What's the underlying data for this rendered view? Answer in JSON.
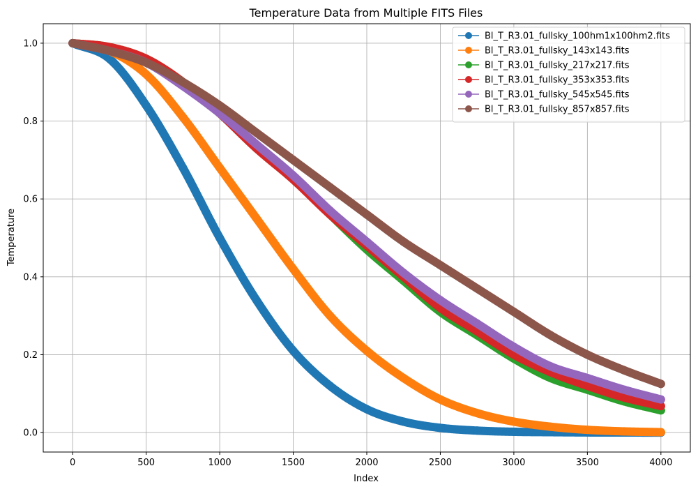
{
  "chart_data": {
    "type": "line",
    "title": "Temperature Data from Multiple FITS Files",
    "xlabel": "Index",
    "ylabel": "Temperature",
    "xlim": [
      -200,
      4200
    ],
    "ylim": [
      -0.05,
      1.05
    ],
    "xticks": [
      0,
      500,
      1000,
      1500,
      2000,
      2500,
      3000,
      3500,
      4000
    ],
    "yticks": [
      0.0,
      0.2,
      0.4,
      0.6,
      0.8,
      1.0
    ],
    "xtick_labels": [
      "0",
      "500",
      "1000",
      "1500",
      "2000",
      "2500",
      "3000",
      "3500",
      "4000"
    ],
    "ytick_labels": [
      "0.0",
      "0.2",
      "0.4",
      "0.6",
      "0.8",
      "1.0"
    ],
    "grid": true,
    "legend_position": "top-right",
    "marker": "circle",
    "series": [
      {
        "name": "Bl_T_R3.01_fullsky_100hm1x100hm2.fits",
        "color": "#1f77b4",
        "x": [
          0,
          250,
          500,
          750,
          1000,
          1250,
          1500,
          1750,
          2000,
          2250,
          2500,
          2750,
          3000,
          3250,
          3500,
          3750,
          4000
        ],
        "values": [
          1.0,
          0.96,
          0.84,
          0.68,
          0.5,
          0.34,
          0.21,
          0.12,
          0.06,
          0.028,
          0.012,
          0.005,
          0.002,
          0.001,
          0.0003,
          0.0001,
          0.0
        ]
      },
      {
        "name": "Bl_T_R3.01_fullsky_143x143.fits",
        "color": "#ff7f0e",
        "x": [
          0,
          250,
          500,
          750,
          1000,
          1250,
          1500,
          1750,
          2000,
          2250,
          2500,
          2750,
          3000,
          3250,
          3500,
          3750,
          4000
        ],
        "values": [
          1.0,
          0.98,
          0.92,
          0.81,
          0.68,
          0.55,
          0.42,
          0.3,
          0.21,
          0.14,
          0.085,
          0.05,
          0.028,
          0.015,
          0.007,
          0.003,
          0.001
        ]
      },
      {
        "name": "Bl_T_R3.01_fullsky_217x217.fits",
        "color": "#2ca02c",
        "x": [
          0,
          250,
          500,
          750,
          1000,
          1250,
          1500,
          1750,
          2000,
          2250,
          2500,
          2750,
          3000,
          3250,
          3500,
          3750,
          4000
        ],
        "values": [
          1.0,
          0.99,
          0.96,
          0.9,
          0.82,
          0.73,
          0.65,
          0.56,
          0.47,
          0.39,
          0.31,
          0.25,
          0.19,
          0.14,
          0.11,
          0.08,
          0.057
        ]
      },
      {
        "name": "Bl_T_R3.01_fullsky_353x353.fits",
        "color": "#d62728",
        "x": [
          0,
          250,
          500,
          750,
          1000,
          1250,
          1500,
          1750,
          2000,
          2250,
          2500,
          2750,
          3000,
          3250,
          3500,
          3750,
          4000
        ],
        "values": [
          1.0,
          0.99,
          0.96,
          0.9,
          0.82,
          0.73,
          0.65,
          0.56,
          0.48,
          0.4,
          0.32,
          0.26,
          0.2,
          0.155,
          0.12,
          0.09,
          0.068
        ]
      },
      {
        "name": "Bl_T_R3.01_fullsky_545x545.fits",
        "color": "#9467bd",
        "x": [
          0,
          250,
          500,
          750,
          1000,
          1250,
          1500,
          1750,
          2000,
          2250,
          2500,
          2750,
          3000,
          3250,
          3500,
          3750,
          4000
        ],
        "values": [
          1.0,
          0.98,
          0.95,
          0.89,
          0.82,
          0.74,
          0.66,
          0.57,
          0.49,
          0.41,
          0.34,
          0.28,
          0.22,
          0.17,
          0.14,
          0.11,
          0.085
        ]
      },
      {
        "name": "Bl_T_R3.01_fullsky_857x857.fits",
        "color": "#8c564b",
        "x": [
          0,
          250,
          500,
          750,
          1000,
          1250,
          1500,
          1750,
          2000,
          2250,
          2500,
          2750,
          3000,
          3250,
          3500,
          3750,
          4000
        ],
        "values": [
          1.0,
          0.98,
          0.95,
          0.9,
          0.84,
          0.77,
          0.7,
          0.63,
          0.56,
          0.49,
          0.43,
          0.37,
          0.31,
          0.25,
          0.2,
          0.16,
          0.125
        ]
      }
    ]
  }
}
